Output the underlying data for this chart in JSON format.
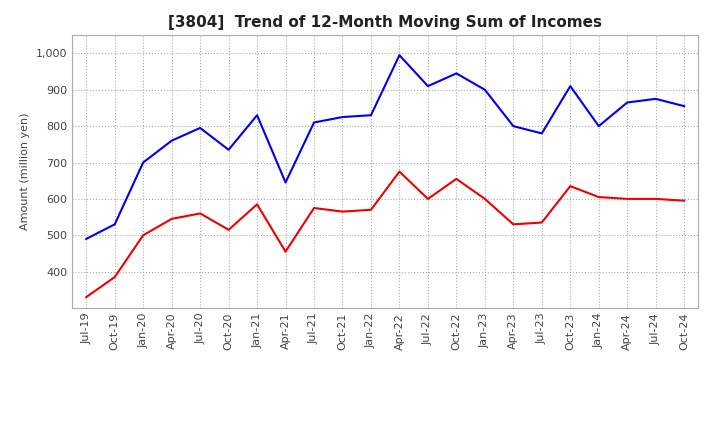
{
  "title": "[3804]  Trend of 12-Month Moving Sum of Incomes",
  "ylabel": "Amount (million yen)",
  "x_labels": [
    "Jul-19",
    "Oct-19",
    "Jan-20",
    "Apr-20",
    "Jul-20",
    "Oct-20",
    "Jan-21",
    "Apr-21",
    "Jul-21",
    "Oct-21",
    "Jan-22",
    "Apr-22",
    "Jul-22",
    "Oct-22",
    "Jan-23",
    "Apr-23",
    "Jul-23",
    "Oct-23",
    "Jan-24",
    "Apr-24",
    "Jul-24",
    "Oct-24"
  ],
  "ordinary_income": [
    490,
    530,
    700,
    760,
    795,
    735,
    830,
    645,
    810,
    825,
    830,
    995,
    910,
    945,
    900,
    800,
    780,
    910,
    800,
    865,
    875,
    855
  ],
  "net_income": [
    330,
    385,
    500,
    545,
    560,
    515,
    585,
    455,
    575,
    565,
    570,
    675,
    600,
    655,
    600,
    530,
    535,
    635,
    605,
    600,
    600,
    595
  ],
  "ordinary_color": "#0000ee",
  "net_color": "#ee0000",
  "ylim_min": 300,
  "ylim_max": 1050,
  "yticks": [
    400,
    500,
    600,
    700,
    800,
    900,
    1000
  ],
  "background_color": "#ffffff",
  "grid_color": "#aaaaaa",
  "title_fontsize": 11,
  "legend_fontsize": 9,
  "tick_fontsize": 8
}
